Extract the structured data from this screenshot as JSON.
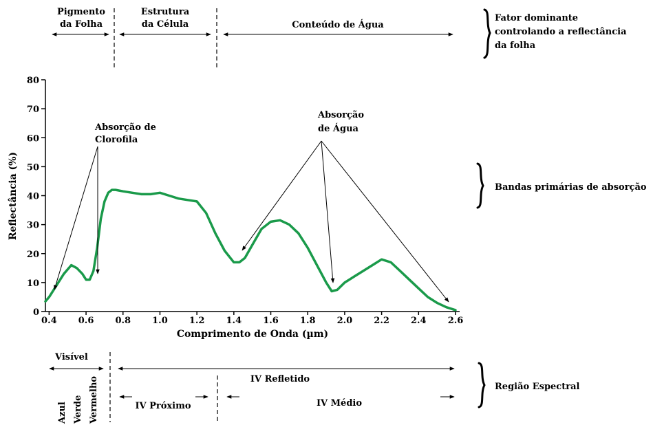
{
  "chart_data": {
    "type": "line",
    "x_label": "Comprimento de Onda (µm)",
    "y_label": "Reflectância (%)",
    "xlim": [
      0.38,
      2.6
    ],
    "ylim": [
      0,
      80
    ],
    "x_ticks": [
      "0.4",
      "0.6",
      "0.8",
      "1.0",
      "1.2",
      "1.4",
      "1.6",
      "1.8",
      "2.0",
      "2.2",
      "2.4",
      "2.6"
    ],
    "y_ticks": [
      "0",
      "10",
      "20",
      "30",
      "40",
      "50",
      "60",
      "70",
      "80"
    ],
    "line_color": "#1a9a4a",
    "series": [
      {
        "x": [
          0.38,
          0.4,
          0.44,
          0.48,
          0.52,
          0.55,
          0.58,
          0.6,
          0.62,
          0.64,
          0.66,
          0.68,
          0.7,
          0.72,
          0.74,
          0.76,
          0.8,
          0.85,
          0.9,
          0.95,
          1.0,
          1.05,
          1.1,
          1.15,
          1.2,
          1.25,
          1.3,
          1.35,
          1.4,
          1.43,
          1.46,
          1.5,
          1.55,
          1.6,
          1.65,
          1.7,
          1.75,
          1.8,
          1.85,
          1.9,
          1.93,
          1.96,
          2.0,
          2.05,
          2.1,
          2.15,
          2.2,
          2.25,
          2.3,
          2.35,
          2.4,
          2.45,
          2.5,
          2.55,
          2.6
        ],
        "y": [
          3.5,
          5,
          9,
          13,
          16,
          15,
          13,
          11,
          11,
          14,
          22,
          32,
          38,
          41,
          42,
          42,
          41.5,
          41,
          40.5,
          40.5,
          41,
          40,
          39,
          38.5,
          38,
          34,
          27,
          21,
          17,
          17,
          18.5,
          23,
          28.5,
          31,
          31.5,
          30,
          27,
          22,
          16,
          10,
          7,
          7.5,
          10,
          12,
          14,
          16,
          18,
          17,
          14,
          11,
          8,
          5,
          3,
          1.5,
          0.5
        ]
      }
    ],
    "annotations": {
      "chlorophyll": "Absorção de Clorofila",
      "water": "Absorção de Água"
    }
  },
  "top_labels": {
    "pigment_line1": "Pigmento",
    "pigment_line2": "da Folha",
    "structure_line1": "Estrutura",
    "structure_line2": "da Célula",
    "water": "Conteúdo de Água",
    "factor_line1": "Fator dominante",
    "factor_line2": "controlando a reflectância",
    "factor_line3": "da folha"
  },
  "side_labels": {
    "bands": "Bandas primárias de absorção",
    "region": "Região Espectral"
  },
  "bottom_labels": {
    "visible": "Visível",
    "reflected_ir": "IV Refletido",
    "near_ir": "IV Próximo",
    "mid_ir": "IV Médio",
    "blue": "Azul",
    "green": "Verde",
    "red": "Vermelho"
  }
}
